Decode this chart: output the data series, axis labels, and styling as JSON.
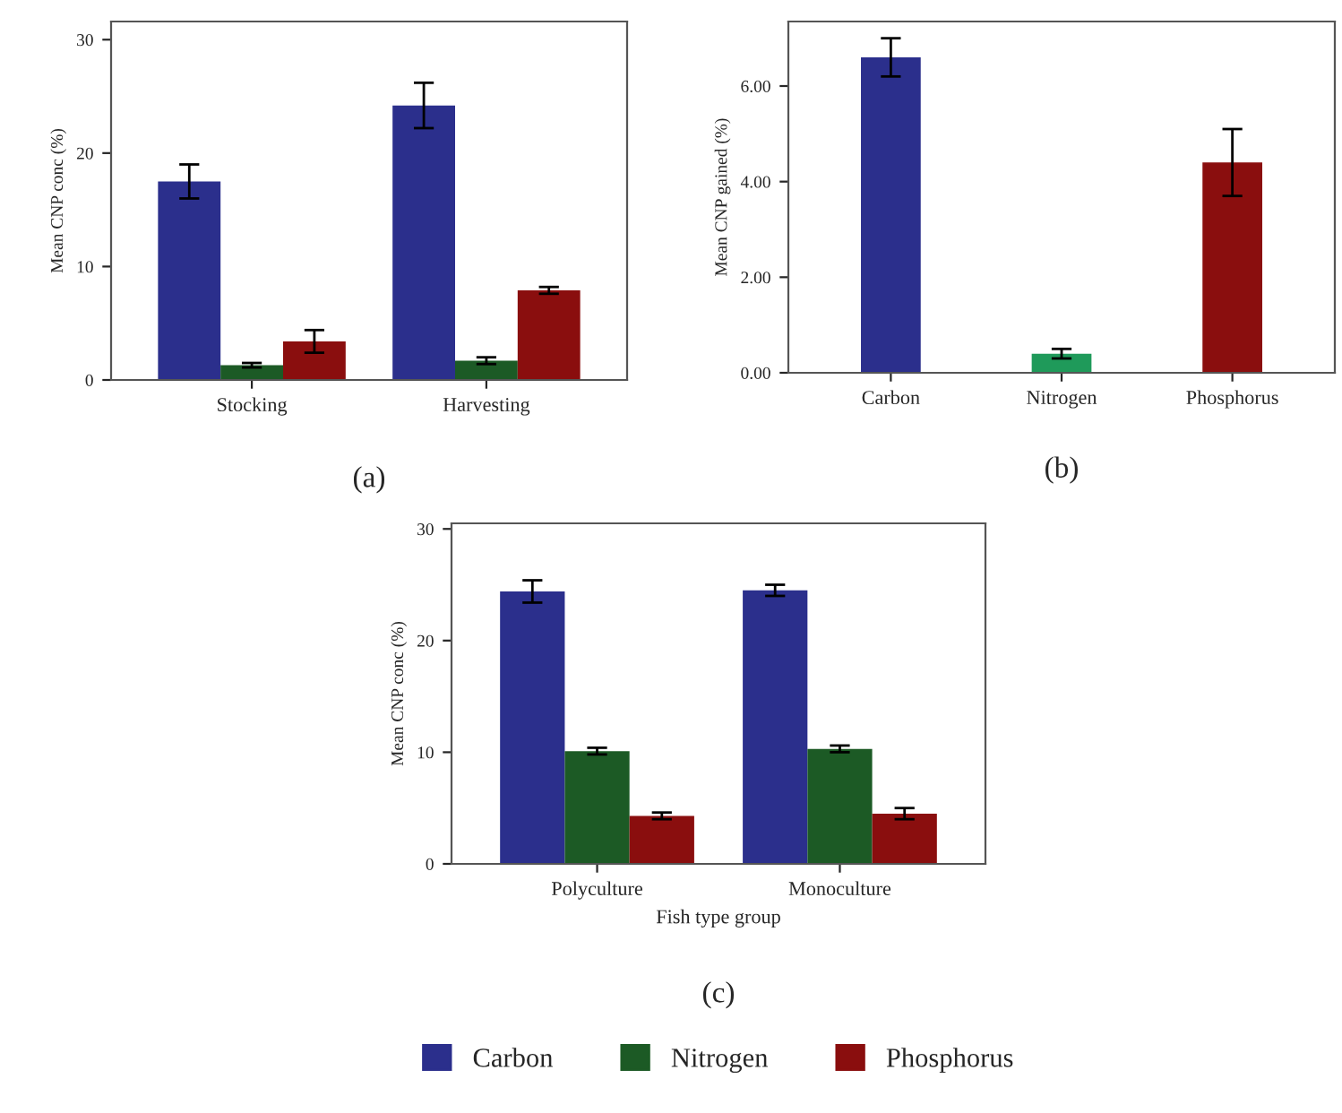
{
  "chart_data": [
    {
      "type": "bar",
      "title": "(a)",
      "ylabel": "Mean CNP conc (%)",
      "categories": [
        "Stocking",
        "Harvesting"
      ],
      "ylim": [
        0,
        31.6
      ],
      "yticks": [
        0,
        10,
        20,
        30
      ],
      "grid": false,
      "legend": false,
      "series": [
        {
          "color": "#2b2f8c",
          "values": [
            17.5,
            24.2
          ],
          "errors": [
            1.5,
            2
          ]
        },
        {
          "color": "#1c5a25",
          "values": [
            1.3,
            1.7
          ],
          "errors": [
            0.2,
            0.3
          ]
        },
        {
          "color": "#8a0e0e",
          "values": [
            3.4,
            7.9
          ],
          "errors": [
            1,
            0.3
          ]
        }
      ]
    },
    {
      "type": "bar",
      "title": "(b)",
      "ylabel": "Mean CNP gained (%)",
      "categories": [
        "Carbon",
        "Nitrogen",
        "Phosphorus"
      ],
      "ylim": [
        0,
        7.35
      ],
      "yticks": [
        {
          "value": 0,
          "label": "0.00"
        },
        {
          "value": 2,
          "label": "2.00"
        },
        {
          "value": 4,
          "label": "4.00"
        },
        {
          "value": 6,
          "label": "6.00"
        }
      ],
      "grid": false,
      "legend": false,
      "values": [
        6.6,
        0.4,
        4.4
      ],
      "colors": [
        "#2b2f8c",
        "#1f9a5a",
        "#8a0e0e"
      ],
      "errors": [
        0.4,
        0.1,
        0.7
      ]
    },
    {
      "type": "bar",
      "title": "(c)",
      "ylabel": "Mean CNP conc (%)",
      "xlabel": "Fish type group",
      "categories": [
        "Polyculture",
        "Monoculture"
      ],
      "ylim": [
        0,
        30.5
      ],
      "yticks": [
        0,
        10,
        20,
        30
      ],
      "grid": false,
      "legend": "bottom",
      "series": [
        {
          "name": "Carbon",
          "color": "#2b2f8c",
          "values": [
            24.4,
            24.5
          ],
          "errors": [
            1,
            0.5
          ]
        },
        {
          "name": "Nitrogen",
          "color": "#1c5a25",
          "values": [
            10.1,
            10.3
          ],
          "errors": [
            0.3,
            0.3
          ]
        },
        {
          "name": "Phosphorus",
          "color": "#8a0e0e",
          "values": [
            4.3,
            4.5
          ],
          "errors": [
            0.3,
            0.5
          ]
        }
      ]
    }
  ]
}
